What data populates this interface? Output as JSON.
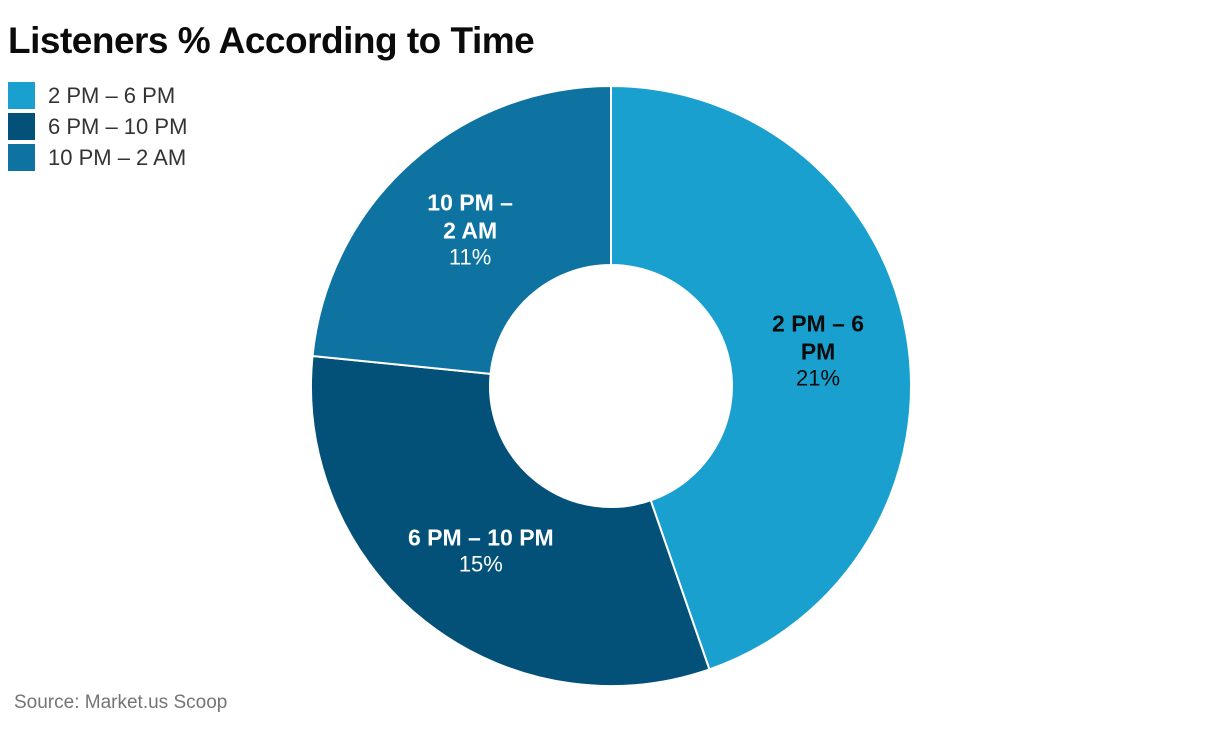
{
  "title": "Listeners % According to Time",
  "source": "Source: Market.us Scoop",
  "colors": {
    "background": "#ffffff",
    "title_text": "#0b0b0b",
    "legend_text": "#333333",
    "source_text": "#757575",
    "slice_divider": "#ffffff"
  },
  "legend": {
    "items": [
      {
        "label": "2 PM – 6 PM",
        "color": "#1aa0ce"
      },
      {
        "label": "6 PM – 10 PM",
        "color": "#035179"
      },
      {
        "label": "10 PM – 2 AM",
        "color": "#0e73a1"
      }
    ]
  },
  "chart_data": {
    "type": "pie",
    "subtype": "donut",
    "title": "Listeners % According to Time",
    "categories": [
      "2 PM – 6 PM",
      "6 PM – 10 PM",
      "10 PM – 2 AM"
    ],
    "values": [
      21,
      15,
      11
    ],
    "value_labels": [
      "21%",
      "15%",
      "11%"
    ],
    "colors": [
      "#1aa0ce",
      "#035179",
      "#0e73a1"
    ],
    "label_text_colors": [
      "#0b0b0b",
      "#ffffff",
      "#ffffff"
    ],
    "start_angle_deg": 0,
    "direction": "clockwise",
    "inner_radius_ratio": 0.4,
    "legend_position": "top-left"
  }
}
